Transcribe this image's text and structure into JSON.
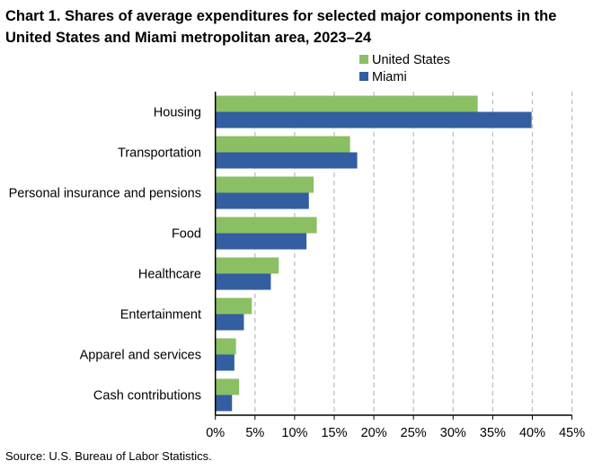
{
  "chart_data": {
    "type": "bar",
    "orientation": "horizontal",
    "title": "Chart 1. Shares of average expenditures for selected major components in the United States and Miami metropolitan area, 2023–24",
    "categories": [
      "Housing",
      "Transportation",
      "Personal insurance and pensions",
      "Food",
      "Healthcare",
      "Entertainment",
      "Apparel and services",
      "Cash contributions"
    ],
    "series": [
      {
        "name": "United States",
        "color": "#8bbf63",
        "values": [
          33.1,
          17.0,
          12.4,
          12.8,
          8.0,
          4.6,
          2.6,
          3.0
        ]
      },
      {
        "name": "Miami",
        "color": "#335ea2",
        "values": [
          39.9,
          17.9,
          11.8,
          11.5,
          7.0,
          3.6,
          2.4,
          2.1
        ]
      }
    ],
    "xlim": [
      0,
      45
    ],
    "xticks": [
      "0%",
      "5%",
      "10%",
      "15%",
      "20%",
      "25%",
      "30%",
      "35%",
      "40%",
      "45%"
    ],
    "xlabel": "",
    "ylabel": "",
    "grid": "vertical dashed",
    "legend": "top-right"
  },
  "source": "Source: U.S. Bureau of Labor Statistics."
}
